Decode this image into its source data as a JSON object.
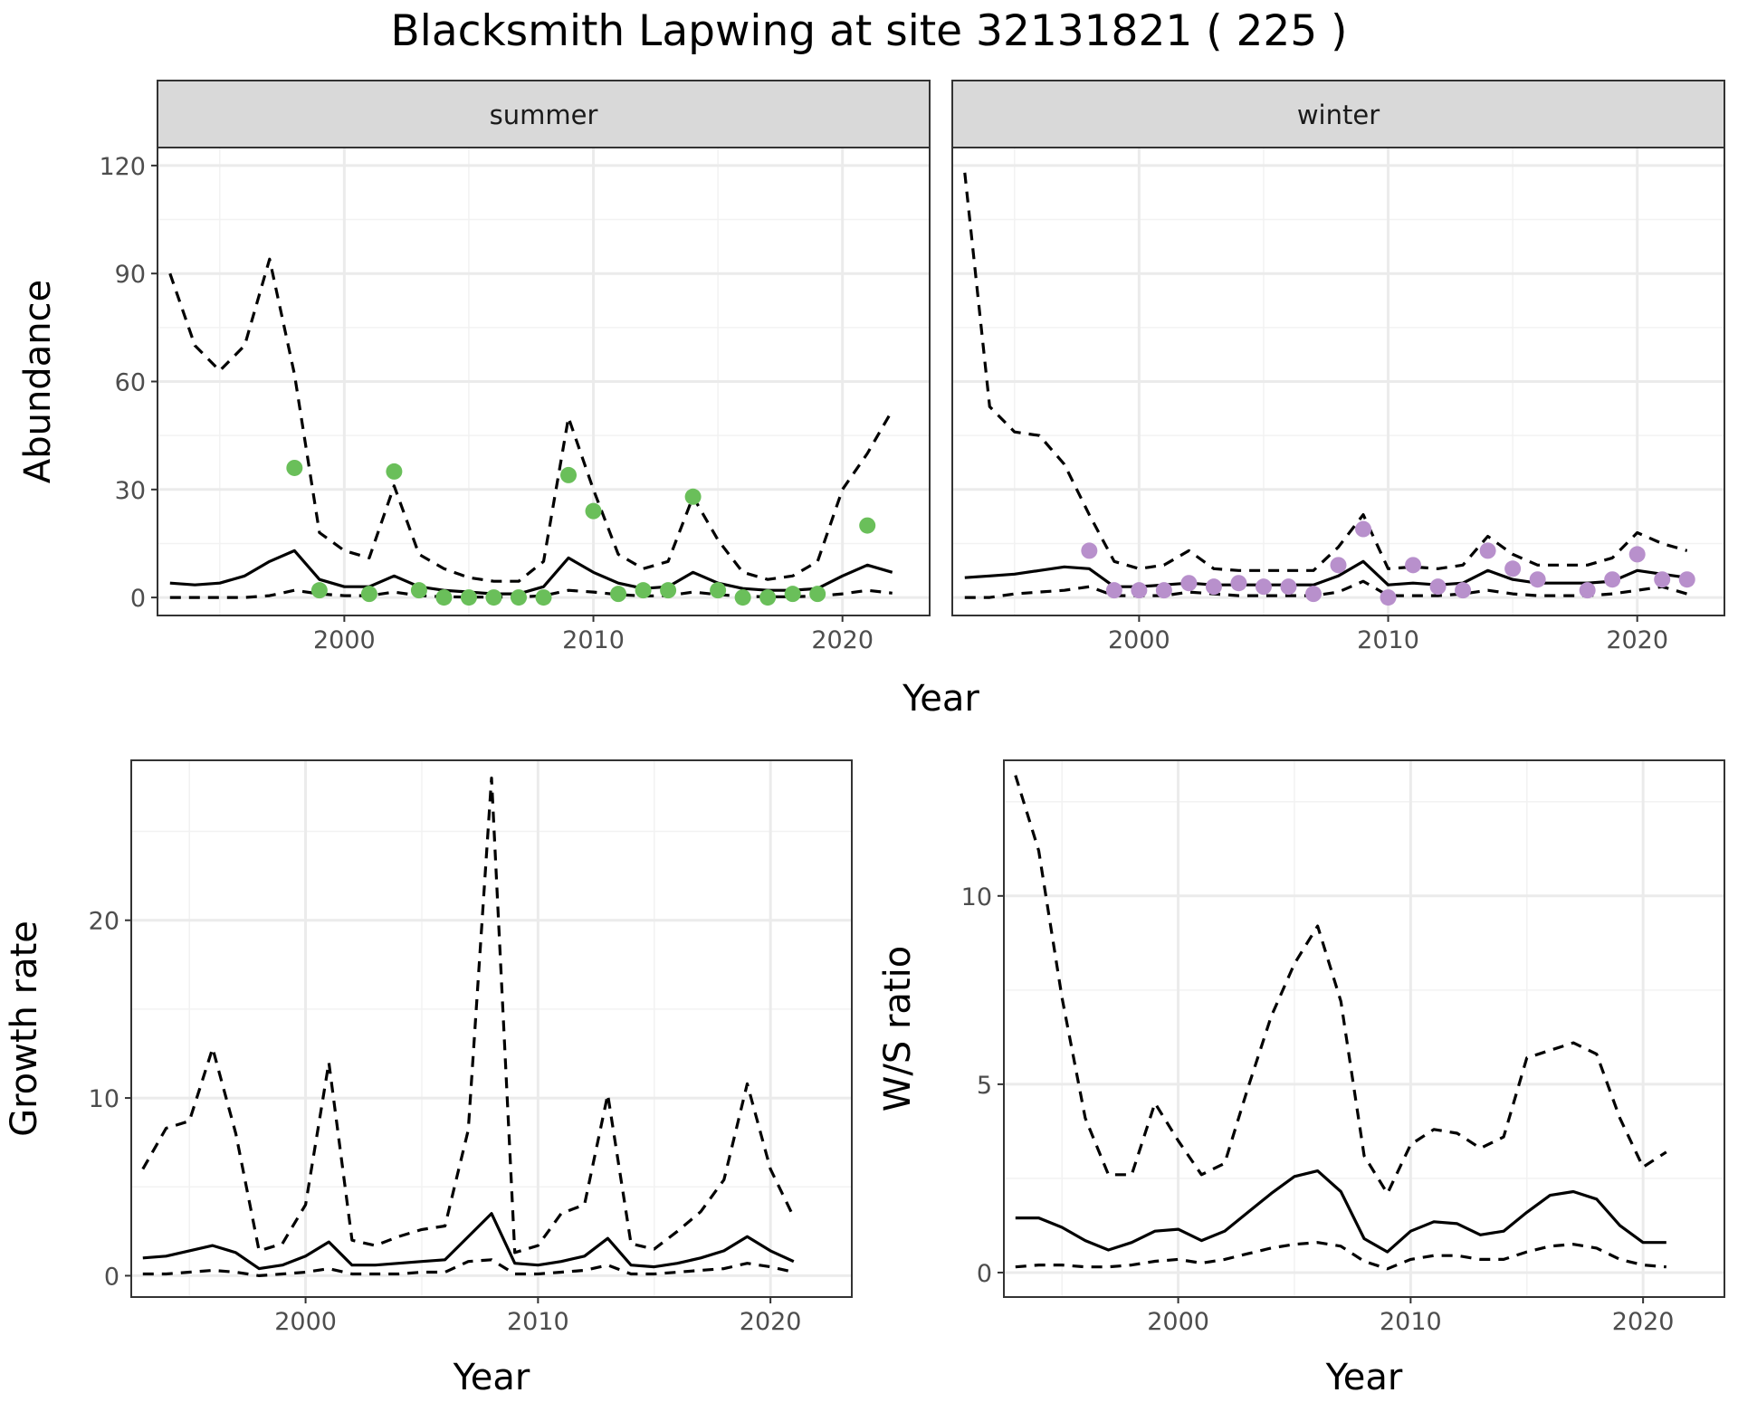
{
  "title": "Blacksmith Lapwing at site 32131821 ( 225 )",
  "chart_data": [
    {
      "type": "line",
      "panel": "abundance",
      "facets": [
        "summer",
        "winter"
      ],
      "xlabel": "Year",
      "ylabel": "Abundance",
      "xlim": [
        1992.5,
        2023.5
      ],
      "ylim": [
        -5,
        125
      ],
      "x_ticks": [
        2000,
        2010,
        2020
      ],
      "y_ticks": [
        0,
        30,
        60,
        90,
        120
      ],
      "grid": true,
      "point_colors": {
        "summer": "#6abf5a",
        "winter": "#b890cc"
      },
      "series": {
        "summer": {
          "years": [
            1993,
            1994,
            1995,
            1996,
            1997,
            1998,
            1999,
            2000,
            2001,
            2002,
            2003,
            2004,
            2005,
            2006,
            2007,
            2008,
            2009,
            2010,
            2011,
            2012,
            2013,
            2014,
            2015,
            2016,
            2017,
            2018,
            2019,
            2020,
            2021,
            2022
          ],
          "mean": [
            4,
            3.5,
            4,
            6,
            10,
            13,
            5,
            3,
            3,
            6,
            3,
            2,
            1.5,
            1,
            1,
            3,
            11,
            7,
            4,
            2.5,
            3,
            7,
            4,
            2.5,
            2,
            2,
            2.5,
            6,
            9,
            7
          ],
          "upper": [
            90,
            70,
            63,
            70,
            94,
            62,
            18,
            13,
            11,
            31,
            12,
            8,
            5.5,
            4.5,
            4.5,
            10,
            50,
            30,
            12,
            8,
            10,
            28,
            16,
            7,
            5,
            6,
            10,
            30,
            40,
            52
          ],
          "lower": [
            0,
            0,
            0,
            0,
            0.5,
            2,
            1,
            0.5,
            0.5,
            1.5,
            0.5,
            0.2,
            0.1,
            0.1,
            0.1,
            0.5,
            2,
            1.5,
            0.8,
            0.4,
            0.5,
            1.5,
            0.8,
            0.3,
            0.2,
            0.2,
            0.4,
            1,
            2,
            1.2
          ],
          "obs_years": [
            1998,
            1999,
            2001,
            2002,
            2003,
            2004,
            2005,
            2006,
            2007,
            2008,
            2009,
            2010,
            2011,
            2012,
            2013,
            2014,
            2015,
            2016,
            2017,
            2018,
            2019,
            2021
          ],
          "obs": [
            36,
            2,
            1,
            35,
            2,
            0,
            0,
            0,
            0,
            0,
            34,
            24,
            1,
            2,
            2,
            28,
            2,
            0,
            0,
            1,
            1,
            20
          ]
        },
        "winter": {
          "years": [
            1993,
            1994,
            1995,
            1996,
            1997,
            1998,
            1999,
            2000,
            2001,
            2002,
            2003,
            2004,
            2005,
            2006,
            2007,
            2008,
            2009,
            2010,
            2011,
            2012,
            2013,
            2014,
            2015,
            2016,
            2017,
            2018,
            2019,
            2020,
            2021,
            2022
          ],
          "mean": [
            5.5,
            6,
            6.5,
            7.5,
            8.5,
            8,
            3,
            3,
            3.5,
            4,
            3.5,
            3.5,
            3.5,
            3.5,
            3.5,
            6,
            10,
            3.5,
            4,
            3.5,
            4,
            7.5,
            5,
            4,
            4,
            4,
            4.5,
            7.5,
            6.5,
            5.5
          ],
          "upper": [
            118,
            53,
            46,
            45,
            37,
            23,
            10,
            8,
            9,
            13,
            8,
            7.5,
            7.5,
            7.5,
            7.5,
            14,
            23,
            8,
            8.5,
            8,
            9,
            17,
            12,
            9,
            9,
            9,
            11,
            18,
            15,
            13
          ],
          "lower": [
            0,
            0,
            1,
            1.5,
            2,
            3,
            0.5,
            0.5,
            0.5,
            1.5,
            1,
            0.5,
            0.5,
            0.5,
            0.5,
            1.5,
            4.5,
            0.5,
            0.5,
            0.5,
            1,
            2,
            1,
            0.5,
            0.5,
            0.5,
            1,
            2,
            3,
            1
          ]
        },
        "winter_obs": {
          "obs_years": [
            1998,
            1999,
            2000,
            2001,
            2002,
            2003,
            2004,
            2005,
            2006,
            2007,
            2008,
            2009,
            2010,
            2011,
            2012,
            2013,
            2014,
            2015,
            2016,
            2018,
            2019,
            2020,
            2021,
            2022
          ],
          "obs": [
            13,
            2,
            2,
            2,
            4,
            3,
            4,
            3,
            3,
            1,
            9,
            19,
            0,
            9,
            3,
            2,
            13,
            8,
            5,
            2,
            5,
            12,
            5,
            5
          ]
        }
      }
    },
    {
      "type": "line",
      "panel": "growth",
      "xlabel": "Year",
      "ylabel": "Growth rate",
      "xlim": [
        1992.5,
        2023.5
      ],
      "ylim": [
        -1.2,
        29
      ],
      "x_ticks": [
        2000,
        2010,
        2020
      ],
      "y_ticks": [
        0,
        10,
        20
      ],
      "grid": true,
      "years": [
        1993,
        1994,
        1995,
        1996,
        1997,
        1998,
        1999,
        2000,
        2001,
        2002,
        2003,
        2004,
        2005,
        2006,
        2007,
        2008,
        2009,
        2010,
        2011,
        2012,
        2013,
        2014,
        2015,
        2016,
        2017,
        2018,
        2019,
        2020,
        2021
      ],
      "mean": [
        1,
        1.1,
        1.4,
        1.7,
        1.3,
        0.4,
        0.6,
        1.1,
        1.9,
        0.6,
        0.6,
        0.7,
        0.8,
        0.9,
        2.2,
        3.5,
        0.7,
        0.6,
        0.8,
        1.1,
        2.1,
        0.6,
        0.5,
        0.7,
        1,
        1.4,
        2.2,
        1.4,
        0.8
      ],
      "upper": [
        6,
        8.3,
        8.7,
        12.8,
        8,
        1.4,
        1.8,
        4,
        12,
        2,
        1.7,
        2.2,
        2.6,
        2.8,
        8.2,
        28,
        1.3,
        1.7,
        3.5,
        4,
        10.2,
        1.8,
        1.5,
        2.5,
        3.6,
        5.4,
        10.8,
        6,
        3.3
      ],
      "lower": [
        0.1,
        0.1,
        0.2,
        0.3,
        0.2,
        0,
        0.1,
        0.2,
        0.4,
        0.1,
        0.1,
        0.1,
        0.2,
        0.2,
        0.8,
        0.9,
        0.1,
        0.1,
        0.2,
        0.3,
        0.6,
        0.1,
        0.1,
        0.2,
        0.3,
        0.4,
        0.7,
        0.5,
        0.2
      ]
    },
    {
      "type": "line",
      "panel": "ratio",
      "xlabel": "Year",
      "ylabel": "W/S ratio",
      "xlim": [
        1992.5,
        2023.5
      ],
      "ylim": [
        -0.65,
        13.6
      ],
      "x_ticks": [
        2000,
        2010,
        2020
      ],
      "y_ticks": [
        0,
        5,
        10
      ],
      "grid": true,
      "years": [
        1993,
        1994,
        1995,
        1996,
        1997,
        1998,
        1999,
        2000,
        2001,
        2002,
        2003,
        2004,
        2005,
        2006,
        2007,
        2008,
        2009,
        2010,
        2011,
        2012,
        2013,
        2014,
        2015,
        2016,
        2017,
        2018,
        2019,
        2020,
        2021
      ],
      "mean": [
        1.45,
        1.45,
        1.2,
        0.85,
        0.6,
        0.8,
        1.1,
        1.15,
        0.85,
        1.1,
        1.6,
        2.1,
        2.55,
        2.7,
        2.15,
        0.9,
        0.55,
        1.1,
        1.35,
        1.3,
        1,
        1.1,
        1.6,
        2.05,
        2.15,
        1.95,
        1.25,
        0.8,
        0.8
      ],
      "upper": [
        13.2,
        11.2,
        7.3,
        4.1,
        2.6,
        2.6,
        4.5,
        3.5,
        2.6,
        2.9,
        4.9,
        6.8,
        8.2,
        9.2,
        7.2,
        3.1,
        2.1,
        3.4,
        3.8,
        3.7,
        3.3,
        3.6,
        5.7,
        5.9,
        6.1,
        5.8,
        4.1,
        2.8,
        3.2
      ],
      "lower": [
        0.15,
        0.2,
        0.2,
        0.15,
        0.15,
        0.2,
        0.3,
        0.35,
        0.25,
        0.35,
        0.5,
        0.65,
        0.75,
        0.8,
        0.7,
        0.3,
        0.1,
        0.35,
        0.45,
        0.45,
        0.35,
        0.35,
        0.55,
        0.7,
        0.75,
        0.65,
        0.35,
        0.2,
        0.15
      ]
    }
  ]
}
